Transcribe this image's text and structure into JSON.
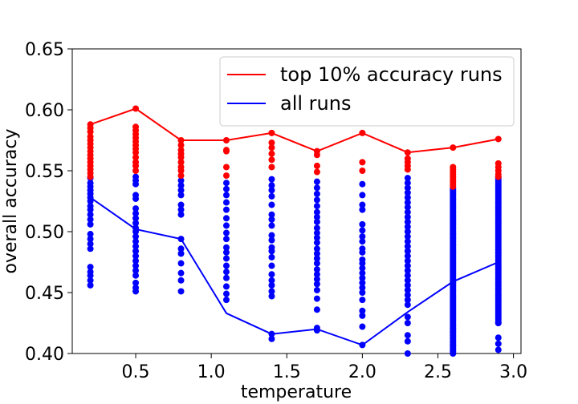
{
  "chart_data": {
    "type": "scatter",
    "xlabel": "temperature",
    "ylabel": "overall accuracy",
    "xlim": [
      0.08,
      3.05
    ],
    "ylim": [
      0.4,
      0.65
    ],
    "xticks": [
      "0.5",
      "1.0",
      "1.5",
      "2.0",
      "2.5",
      "3.0"
    ],
    "yticks": [
      "0.40",
      "0.45",
      "0.50",
      "0.55",
      "0.60",
      "0.65"
    ],
    "grid": false,
    "legend_position": "top-right",
    "legend": [
      {
        "name": "top 10% accuracy runs",
        "color": "#ff0000"
      },
      {
        "name": "all runs",
        "color": "#0000ff"
      }
    ],
    "lines": [
      {
        "name": "top 10% accuracy runs",
        "color": "#ff0000",
        "x": [
          0.2,
          0.5,
          0.8,
          1.1,
          1.4,
          1.7,
          2.0,
          2.3,
          2.6,
          2.9
        ],
        "y": [
          0.588,
          0.601,
          0.575,
          0.575,
          0.581,
          0.566,
          0.581,
          0.565,
          0.569,
          0.576
        ]
      },
      {
        "name": "all runs",
        "color": "#0000ff",
        "x": [
          0.2,
          0.5,
          0.8,
          1.1,
          1.4,
          1.7,
          2.0,
          2.3,
          2.6,
          2.9
        ],
        "y": [
          0.528,
          0.502,
          0.494,
          0.433,
          0.416,
          0.42,
          0.407,
          0.434,
          0.459,
          0.475
        ]
      }
    ],
    "scatter_red": [
      {
        "x": 0.2,
        "y": [
          0.588,
          0.585,
          0.582,
          0.578,
          0.575,
          0.572,
          0.569,
          0.566,
          0.563,
          0.56,
          0.557,
          0.554,
          0.551,
          0.548,
          0.545
        ]
      },
      {
        "x": 0.5,
        "y": [
          0.601,
          0.586,
          0.583,
          0.58,
          0.577,
          0.574,
          0.571,
          0.568,
          0.565,
          0.561,
          0.557,
          0.554,
          0.55
        ]
      },
      {
        "x": 0.8,
        "y": [
          0.575,
          0.571,
          0.567,
          0.564,
          0.561,
          0.557,
          0.553,
          0.55,
          0.546
        ]
      },
      {
        "x": 1.1,
        "y": [
          0.575,
          0.567,
          0.566,
          0.553,
          0.546
        ]
      },
      {
        "x": 1.4,
        "y": [
          0.581,
          0.573,
          0.569,
          0.564,
          0.559,
          0.553
        ]
      },
      {
        "x": 1.7,
        "y": [
          0.566,
          0.563,
          0.554,
          0.549
        ]
      },
      {
        "x": 2.0,
        "y": [
          0.581,
          0.557,
          0.55
        ]
      },
      {
        "x": 2.3,
        "y": [
          0.565,
          0.56,
          0.557,
          0.554,
          0.551
        ]
      },
      {
        "x": 2.6,
        "y": [
          0.569,
          0.553,
          0.551,
          0.549,
          0.547,
          0.545,
          0.543,
          0.541,
          0.539,
          0.537
        ]
      },
      {
        "x": 2.9,
        "y": [
          0.576,
          0.556,
          0.553,
          0.55,
          0.547,
          0.545
        ]
      }
    ],
    "scatter_blue": [
      {
        "x": 0.2,
        "y": [
          0.544,
          0.54,
          0.537,
          0.534,
          0.531,
          0.528,
          0.525,
          0.521,
          0.518,
          0.514,
          0.51,
          0.506,
          0.498,
          0.494,
          0.49,
          0.486,
          0.471,
          0.467,
          0.464,
          0.46,
          0.456
        ]
      },
      {
        "x": 0.5,
        "y": [
          0.545,
          0.542,
          0.539,
          0.53,
          0.527,
          0.519,
          0.515,
          0.511,
          0.507,
          0.503,
          0.5,
          0.496,
          0.492,
          0.488,
          0.484,
          0.48,
          0.476,
          0.472,
          0.468,
          0.464,
          0.458,
          0.454,
          0.451
        ]
      },
      {
        "x": 0.8,
        "y": [
          0.542,
          0.538,
          0.534,
          0.53,
          0.522,
          0.518,
          0.514,
          0.494,
          0.486,
          0.482,
          0.474,
          0.466,
          0.46,
          0.451
        ]
      },
      {
        "x": 1.1,
        "y": [
          0.54,
          0.535,
          0.53,
          0.524,
          0.518,
          0.511,
          0.505,
          0.499,
          0.494,
          0.487,
          0.483,
          0.478,
          0.472,
          0.467,
          0.462,
          0.455,
          0.449,
          0.444
        ]
      },
      {
        "x": 1.4,
        "y": [
          0.543,
          0.538,
          0.534,
          0.529,
          0.522,
          0.514,
          0.51,
          0.505,
          0.497,
          0.493,
          0.487,
          0.484,
          0.479,
          0.472,
          0.465,
          0.46,
          0.456,
          0.451,
          0.447,
          0.416,
          0.412
        ]
      },
      {
        "x": 1.7,
        "y": [
          0.541,
          0.536,
          0.531,
          0.526,
          0.521,
          0.516,
          0.512,
          0.508,
          0.503,
          0.499,
          0.495,
          0.491,
          0.486,
          0.482,
          0.478,
          0.474,
          0.469,
          0.465,
          0.461,
          0.457,
          0.452,
          0.445,
          0.436,
          0.421,
          0.419
        ]
      },
      {
        "x": 2.0,
        "y": [
          0.539,
          0.53,
          0.522,
          0.518,
          0.506,
          0.501,
          0.496,
          0.492,
          0.486,
          0.483,
          0.477,
          0.474,
          0.47,
          0.466,
          0.462,
          0.458,
          0.454,
          0.45,
          0.444,
          0.435,
          0.431,
          0.422,
          0.407
        ]
      },
      {
        "x": 2.3,
        "y": [
          0.544,
          0.54,
          0.536,
          0.532,
          0.528,
          0.524,
          0.52,
          0.516,
          0.512,
          0.508,
          0.504,
          0.5,
          0.496,
          0.492,
          0.488,
          0.484,
          0.48,
          0.476,
          0.472,
          0.468,
          0.464,
          0.46,
          0.456,
          0.452,
          0.448,
          0.444,
          0.44,
          0.43,
          0.425,
          0.415,
          0.41,
          0.4
        ]
      },
      {
        "x": 2.6,
        "y": [
          0.535,
          0.4
        ]
      },
      {
        "x": 2.9,
        "y": [
          0.545,
          0.425,
          0.413,
          0.408,
          0.403
        ]
      }
    ]
  }
}
